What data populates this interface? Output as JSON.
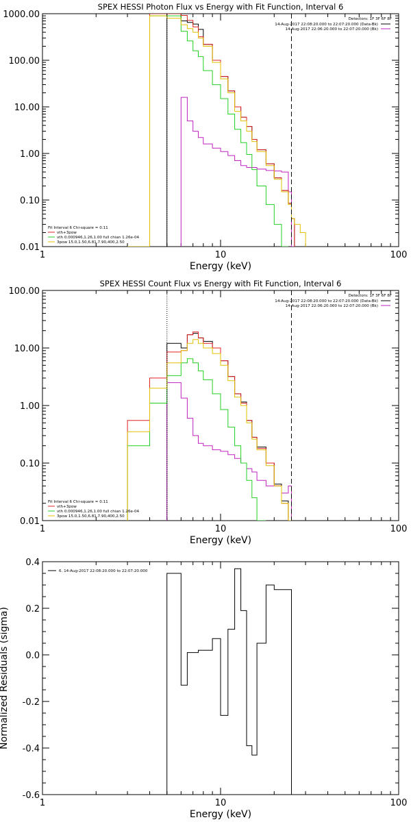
{
  "chart_data": [
    {
      "type": "line",
      "title": "SPEX HESSI Photon Flux vs Energy with Fit Function, Interval 6",
      "xlabel": "Energy (keV)",
      "ylabel": "",
      "xscale": "log",
      "yscale": "log",
      "xlim": [
        1,
        100
      ],
      "ylim": [
        0.01,
        1000
      ],
      "x_ticks": [
        1,
        10,
        100
      ],
      "x_tick_labels": [
        "1",
        "10",
        "100"
      ],
      "y_ticks": [
        0.01,
        0.1,
        1,
        10,
        100,
        1000
      ],
      "y_tick_labels": [
        "0.01",
        "0.10",
        "1.00",
        "10.00",
        "100.00",
        "1000.00"
      ],
      "vlines": [
        {
          "x": 5,
          "style": "dotted",
          "color": "#000000"
        },
        {
          "x": 25,
          "style": "dashed",
          "color": "#000000"
        }
      ],
      "legend_top": {
        "position": "top-right",
        "header": "Detectors: 1F 3F 6F 8F",
        "entries": [
          {
            "label": "14-Aug-2017 22:08:20.000 to 22:07:20.000 (Data-Bk)",
            "color": "#000000"
          },
          {
            "label": "14-Aug-2017 22:06:20.000 to 22:07:20.000 (Bk)",
            "color": "#c020c0"
          }
        ]
      },
      "legend_bottom": {
        "position": "bottom-left",
        "header": "Fit Interval 6   Chi-square = 0.11",
        "entries": [
          {
            "label": "vth+3pow",
            "color": "#e02020"
          },
          {
            "label": "vth 0.000946,1.26,1.00  full chian 1.26e-04",
            "color": "#20d020"
          },
          {
            "label": "3pow 15.0,1.50,6.81,7.90,400,2.50",
            "color": "#e0c000"
          }
        ]
      },
      "edges": [
        3,
        4,
        5,
        6,
        6.5,
        7,
        7.5,
        8,
        9,
        10,
        11,
        12,
        13,
        14,
        15,
        16,
        18,
        20,
        22,
        24,
        25,
        26,
        28,
        30
      ],
      "series": [
        {
          "name": "Data-Bk",
          "color": "#000000",
          "values": [
            null,
            null,
            1000,
            700,
            650,
            600,
            460,
            220,
            100,
            45,
            22,
            10,
            6,
            3.8,
            2,
            1.2,
            0.6,
            0.3,
            0.16,
            0.085,
            0.04,
            null,
            null
          ]
        },
        {
          "name": "Bk",
          "color": "#c020c0",
          "values": [
            null,
            null,
            null,
            16,
            5,
            3,
            2.2,
            1.6,
            1.3,
            1.1,
            0.9,
            0.7,
            0.55,
            0.5,
            0.5,
            0.46,
            0.43,
            0.42,
            0.4,
            0.15,
            0.01,
            null,
            null
          ]
        },
        {
          "name": "vth+3pow",
          "color": "#e02020",
          "values": [
            null,
            1000,
            1000,
            920,
            720,
            520,
            320,
            220,
            100,
            45,
            22,
            10,
            6,
            3.8,
            2,
            1.2,
            0.6,
            0.3,
            0.16,
            0.085,
            0.04,
            null,
            null
          ]
        },
        {
          "name": "vth",
          "color": "#20d020",
          "values": [
            null,
            900,
            900,
            420,
            260,
            160,
            120,
            60,
            30,
            15,
            7,
            3.3,
            1.7,
            0.95,
            0.45,
            0.2,
            0.08,
            0.03,
            0.01,
            null,
            null,
            null,
            null
          ]
        },
        {
          "name": "3pow",
          "color": "#e0c000",
          "values": [
            0.005,
            900,
            800,
            580,
            480,
            400,
            300,
            200,
            90,
            40,
            20,
            8,
            5,
            3,
            1.8,
            1.1,
            0.55,
            0.28,
            0.15,
            0.08,
            0.04,
            0.03,
            0.02
          ]
        }
      ]
    },
    {
      "type": "line",
      "title": "SPEX HESSI Count Flux vs Energy with Fit Function, Interval 6",
      "xlabel": "Energy (keV)",
      "ylabel": "",
      "xscale": "log",
      "yscale": "log",
      "xlim": [
        1,
        100
      ],
      "ylim": [
        0.01,
        100
      ],
      "x_ticks": [
        1,
        10,
        100
      ],
      "x_tick_labels": [
        "1",
        "10",
        "100"
      ],
      "y_ticks": [
        0.01,
        0.1,
        1,
        10,
        100
      ],
      "y_tick_labels": [
        "0.01",
        "0.10",
        "1.00",
        "10.00",
        "100.00"
      ],
      "vlines": [
        {
          "x": 5,
          "style": "dotted",
          "color": "#000000"
        },
        {
          "x": 25,
          "style": "dashed",
          "color": "#000000"
        }
      ],
      "legend_top": {
        "position": "top-right",
        "header": "Detectors: 1F 3F 6F 8F",
        "entries": [
          {
            "label": "14-Aug-2017 22:08:20.000 to 22:07:20.000 (Data-Bk)",
            "color": "#000000"
          },
          {
            "label": "14-Aug-2017 22:06:20.000 to 22:07:20.000 (Bk)",
            "color": "#c020c0"
          }
        ]
      },
      "legend_bottom": {
        "position": "bottom-left",
        "header": "Fit Interval 6   Chi-square = 0.11",
        "entries": [
          {
            "label": "vth+3pow",
            "color": "#e02020"
          },
          {
            "label": "vth 0.000946,1.26,1.00  full chian 1.26e-04",
            "color": "#20d020"
          },
          {
            "label": "3pow 15.0,1.50,6.81,7.90,400,2.50",
            "color": "#e0c000"
          }
        ]
      },
      "edges": [
        3,
        4,
        5,
        6,
        6.5,
        7,
        7.5,
        8,
        9,
        10,
        11,
        12,
        13,
        14,
        15,
        16,
        18,
        20,
        22,
        24,
        25
      ],
      "series": [
        {
          "name": "Data-Bk",
          "color": "#000000",
          "values": [
            null,
            null,
            12,
            10,
            17,
            18,
            15,
            13,
            10,
            6,
            3.2,
            1.6,
            1.15,
            0.55,
            0.28,
            0.19,
            0.1,
            0.043,
            0.022,
            0.01
          ]
        },
        {
          "name": "Bk",
          "color": "#c020c0",
          "values": [
            null,
            null,
            2.5,
            1.35,
            0.6,
            0.3,
            0.22,
            0.2,
            0.17,
            0.16,
            0.14,
            0.12,
            0.1,
            0.08,
            0.07,
            0.05,
            0.04,
            0.04,
            0.03,
            0.04
          ]
        },
        {
          "name": "vth+3pow",
          "color": "#e02020",
          "values": [
            0.55,
            3.0,
            8.5,
            9,
            17,
            19,
            15,
            12,
            10,
            6,
            3.2,
            1.6,
            1.1,
            0.55,
            0.28,
            0.18,
            0.1,
            0.04,
            0.02,
            0.01
          ]
        },
        {
          "name": "vth",
          "color": "#20d020",
          "values": [
            0.2,
            1.1,
            3.3,
            5.5,
            6.5,
            5.5,
            4,
            2.8,
            1.6,
            0.85,
            0.42,
            0.2,
            0.1,
            0.05,
            0.025,
            0.01,
            null,
            null,
            null,
            null
          ]
        },
        {
          "name": "3pow",
          "color": "#e0c000",
          "values": [
            0.35,
            2.0,
            5.5,
            9,
            12,
            14,
            12,
            10,
            8,
            5,
            2.7,
            1.4,
            1.0,
            0.5,
            0.26,
            0.17,
            0.09,
            0.04,
            0.02,
            0.01
          ]
        }
      ]
    },
    {
      "type": "line",
      "title": "",
      "xlabel": "Energy (keV)",
      "ylabel": "Normalized Residuals (sigma)",
      "xscale": "log",
      "yscale": "linear",
      "xlim": [
        1,
        100
      ],
      "ylim": [
        -0.6,
        0.4
      ],
      "x_ticks": [
        1,
        10,
        100
      ],
      "x_tick_labels": [
        "1",
        "10",
        "100"
      ],
      "y_ticks": [
        -0.6,
        -0.4,
        -0.2,
        0.0,
        0.2,
        0.4
      ],
      "y_tick_labels": [
        "-0.6",
        "-0.4",
        "-0.2",
        "0.0",
        "0.2",
        "0.4"
      ],
      "legend_top": {
        "position": "top-left",
        "header": "",
        "entries": [
          {
            "label": "6. 14-Aug-2017 22:08:20.000 to 22:07:20.000",
            "color": "#000000"
          }
        ]
      },
      "edges": [
        5,
        6,
        6.5,
        7,
        7.5,
        8,
        9,
        10,
        11,
        12,
        13,
        14,
        15,
        16,
        18,
        20,
        22,
        24,
        25
      ],
      "series": [
        {
          "name": "",
          "color": "#000000",
          "values": [
            0.35,
            -0.13,
            0.01,
            0.01,
            0.02,
            0.02,
            0.07,
            -0.26,
            0.11,
            0.37,
            0.19,
            -0.39,
            -0.43,
            0.05,
            0.3,
            0.28,
            0.28,
            0.28
          ]
        }
      ]
    }
  ]
}
